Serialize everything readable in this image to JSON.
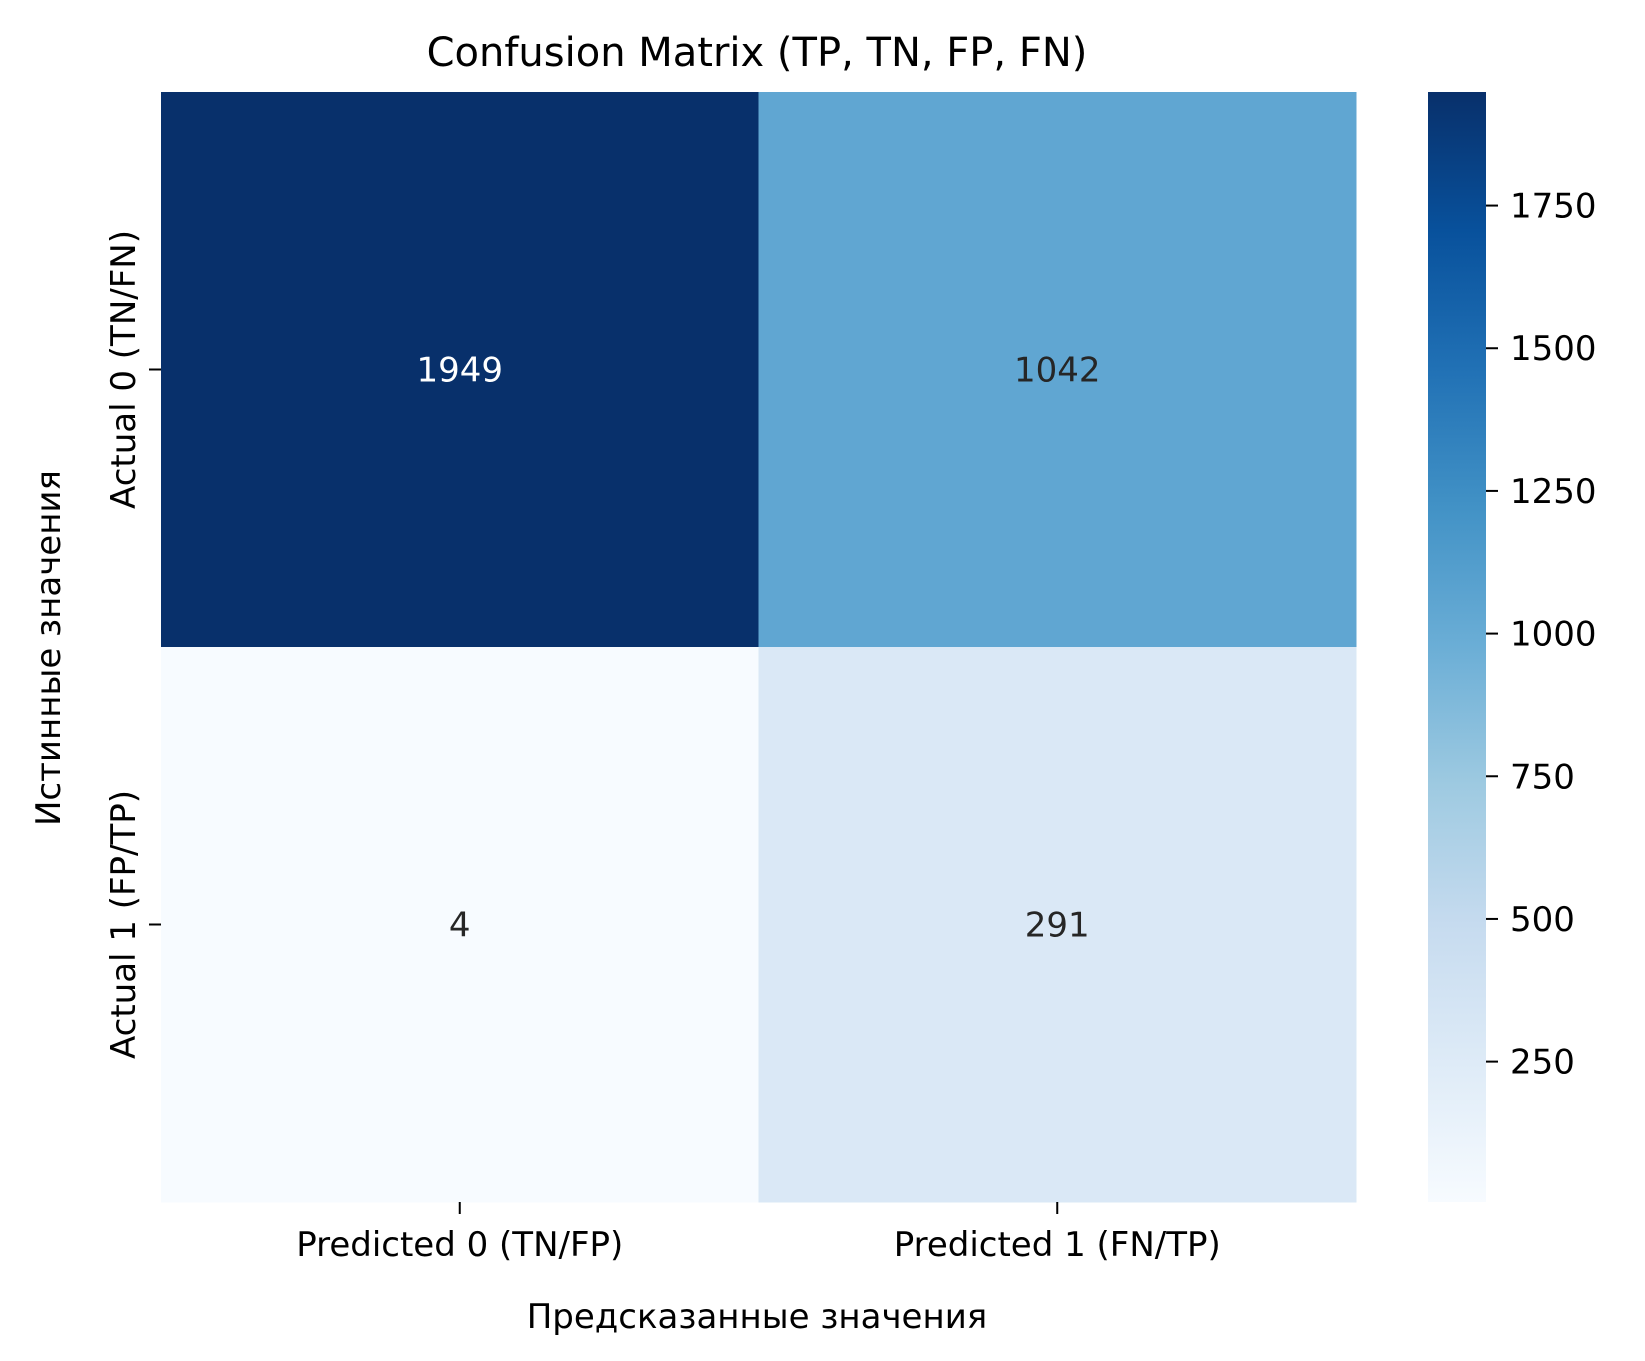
{
  "chart_data": {
    "type": "heatmap",
    "title": "Confusion Matrix (TP, TN, FP, FN)",
    "xlabel": "Предсказанные значения",
    "ylabel": "Истинные значения",
    "x_categories": [
      "Predicted 0 (TN/FP)",
      "Predicted 1 (FN/TP)"
    ],
    "y_categories": [
      "Actual 0 (TN/FN)",
      "Actual 1 (FP/TP)"
    ],
    "values": [
      [
        1949,
        1042
      ],
      [
        4,
        291
      ]
    ],
    "colormap": "Blues",
    "colorbar": {
      "range": [
        4,
        1949
      ],
      "ticks": [
        250,
        500,
        750,
        1000,
        1250,
        1500,
        1750
      ]
    }
  }
}
